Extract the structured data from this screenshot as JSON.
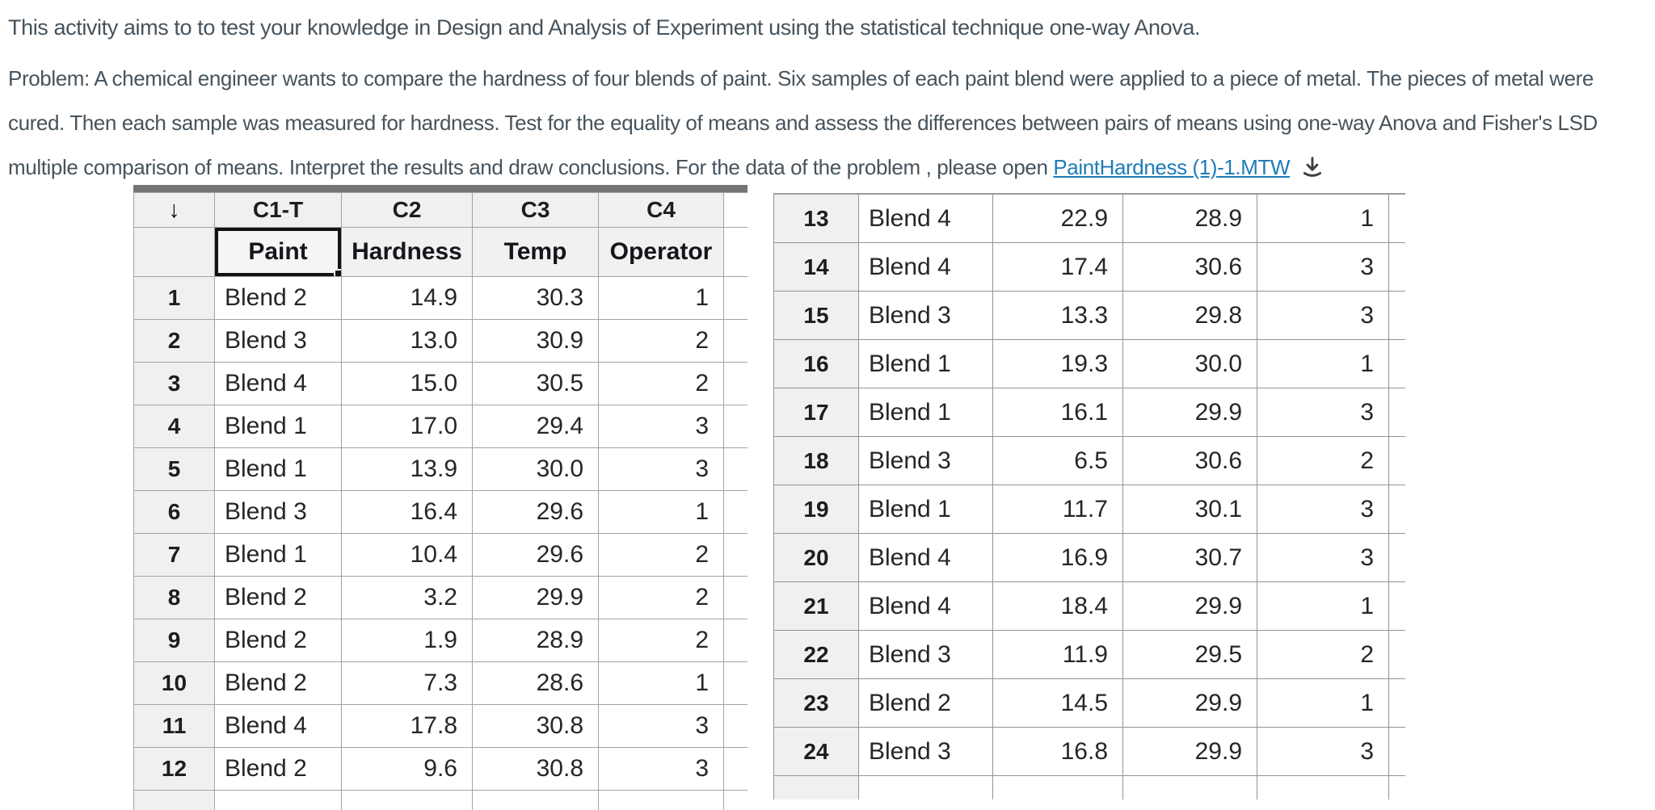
{
  "intro": {
    "text": "This activity aims to to test your knowledge in Design and Analysis of Experiment using the statistical technique one-way Anova."
  },
  "problem": {
    "text_before_link": "Problem: A chemical engineer wants to compare the hardness of four blends of paint. Six samples of each paint blend were applied to a piece of metal. The pieces of metal were cured. Then each sample was measured for hardness. Test for the equality of means and assess the differences between pairs of means using one-way Anova and Fisher's LSD multiple comparison of means. Interpret the results and draw conclusions. For the data of the problem , please open ",
    "link_text": "PaintHardness (1)-1.MTW"
  },
  "worksheet": {
    "sort_arrow": "↓",
    "column_ids": [
      "C1-T",
      "C2",
      "C3",
      "C4"
    ],
    "column_names": [
      "Paint",
      "Hardness",
      "Temp",
      "Operator"
    ],
    "selected_cell": "Paint",
    "rows": [
      {
        "row": "1",
        "paint": "Blend 2",
        "hardness": "14.9",
        "temp": "30.3",
        "operator": "1"
      },
      {
        "row": "2",
        "paint": "Blend 3",
        "hardness": "13.0",
        "temp": "30.9",
        "operator": "2"
      },
      {
        "row": "3",
        "paint": "Blend 4",
        "hardness": "15.0",
        "temp": "30.5",
        "operator": "2"
      },
      {
        "row": "4",
        "paint": "Blend 1",
        "hardness": "17.0",
        "temp": "29.4",
        "operator": "3"
      },
      {
        "row": "5",
        "paint": "Blend 1",
        "hardness": "13.9",
        "temp": "30.0",
        "operator": "3"
      },
      {
        "row": "6",
        "paint": "Blend 3",
        "hardness": "16.4",
        "temp": "29.6",
        "operator": "1"
      },
      {
        "row": "7",
        "paint": "Blend 1",
        "hardness": "10.4",
        "temp": "29.6",
        "operator": "2"
      },
      {
        "row": "8",
        "paint": "Blend 2",
        "hardness": "3.2",
        "temp": "29.9",
        "operator": "2"
      },
      {
        "row": "9",
        "paint": "Blend 2",
        "hardness": "1.9",
        "temp": "28.9",
        "operator": "2"
      },
      {
        "row": "10",
        "paint": "Blend 2",
        "hardness": "7.3",
        "temp": "28.6",
        "operator": "1"
      },
      {
        "row": "11",
        "paint": "Blend 4",
        "hardness": "17.8",
        "temp": "30.8",
        "operator": "3"
      },
      {
        "row": "12",
        "paint": "Blend 2",
        "hardness": "9.6",
        "temp": "30.8",
        "operator": "3"
      },
      {
        "row": "13",
        "paint": "Blend 4",
        "hardness": "22.9",
        "temp": "28.9",
        "operator": "1"
      },
      {
        "row": "14",
        "paint": "Blend 4",
        "hardness": "17.4",
        "temp": "30.6",
        "operator": "3"
      },
      {
        "row": "15",
        "paint": "Blend 3",
        "hardness": "13.3",
        "temp": "29.8",
        "operator": "3"
      },
      {
        "row": "16",
        "paint": "Blend 1",
        "hardness": "19.3",
        "temp": "30.0",
        "operator": "1"
      },
      {
        "row": "17",
        "paint": "Blend 1",
        "hardness": "16.1",
        "temp": "29.9",
        "operator": "3"
      },
      {
        "row": "18",
        "paint": "Blend 3",
        "hardness": "6.5",
        "temp": "30.6",
        "operator": "2"
      },
      {
        "row": "19",
        "paint": "Blend 1",
        "hardness": "11.7",
        "temp": "30.1",
        "operator": "3"
      },
      {
        "row": "20",
        "paint": "Blend 4",
        "hardness": "16.9",
        "temp": "30.7",
        "operator": "3"
      },
      {
        "row": "21",
        "paint": "Blend 4",
        "hardness": "18.4",
        "temp": "29.9",
        "operator": "1"
      },
      {
        "row": "22",
        "paint": "Blend 3",
        "hardness": "11.9",
        "temp": "29.5",
        "operator": "2"
      },
      {
        "row": "23",
        "paint": "Blend 2",
        "hardness": "14.5",
        "temp": "29.9",
        "operator": "1"
      },
      {
        "row": "24",
        "paint": "Blend 3",
        "hardness": "16.8",
        "temp": "29.9",
        "operator": "3"
      }
    ]
  },
  "colors": {
    "body_text": "#46535c",
    "link": "#1e7cb8",
    "grid_border": "#a3a3a3",
    "header_bg": "#f0f0f0",
    "selection": "#121212",
    "worksheet_top_bar": "#757575"
  }
}
